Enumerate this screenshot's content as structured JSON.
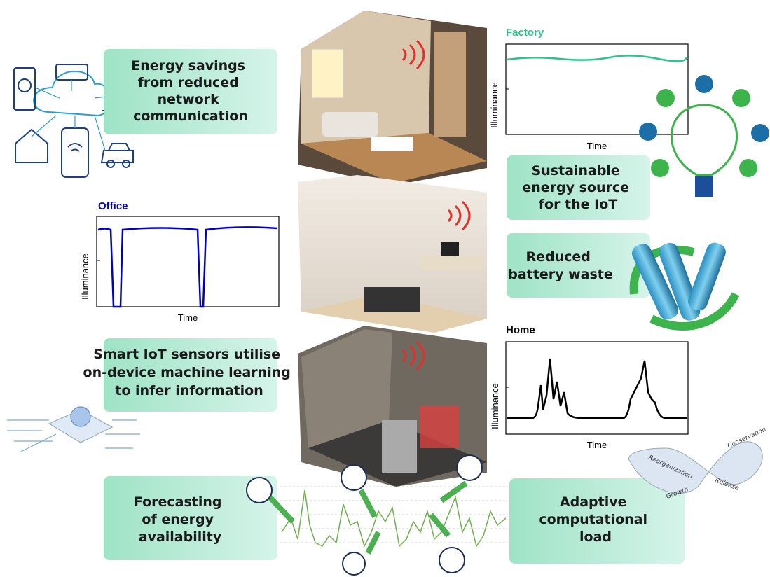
{
  "boxes": [
    {
      "lines": [
        "Energy savings",
        "from reduced",
        "network",
        "communication"
      ]
    },
    {
      "lines": [
        "Sustainable",
        "energy source",
        "for the IoT"
      ]
    },
    {
      "lines": [
        "Reduced",
        "battery waste"
      ]
    },
    {
      "lines": [
        "Smart IoT sensors utilise",
        "on-device machine learning",
        "to infer information"
      ]
    },
    {
      "lines": [
        "Forecasting",
        "of energy",
        "availability"
      ]
    },
    {
      "lines": [
        "Adaptive",
        "computational",
        "load"
      ]
    }
  ],
  "charts": {
    "factory": {
      "title": "Factory",
      "xlabel": "Time",
      "ylabel": "Illuminance"
    },
    "office": {
      "title": "Office",
      "xlabel": "Time",
      "ylabel": "Illuminance"
    },
    "home": {
      "title": "Home",
      "xlabel": "Time",
      "ylabel": "Illuminance"
    }
  },
  "infinity_labels": [
    "Reorganization",
    "Conservation",
    "Growth",
    "Release"
  ]
}
